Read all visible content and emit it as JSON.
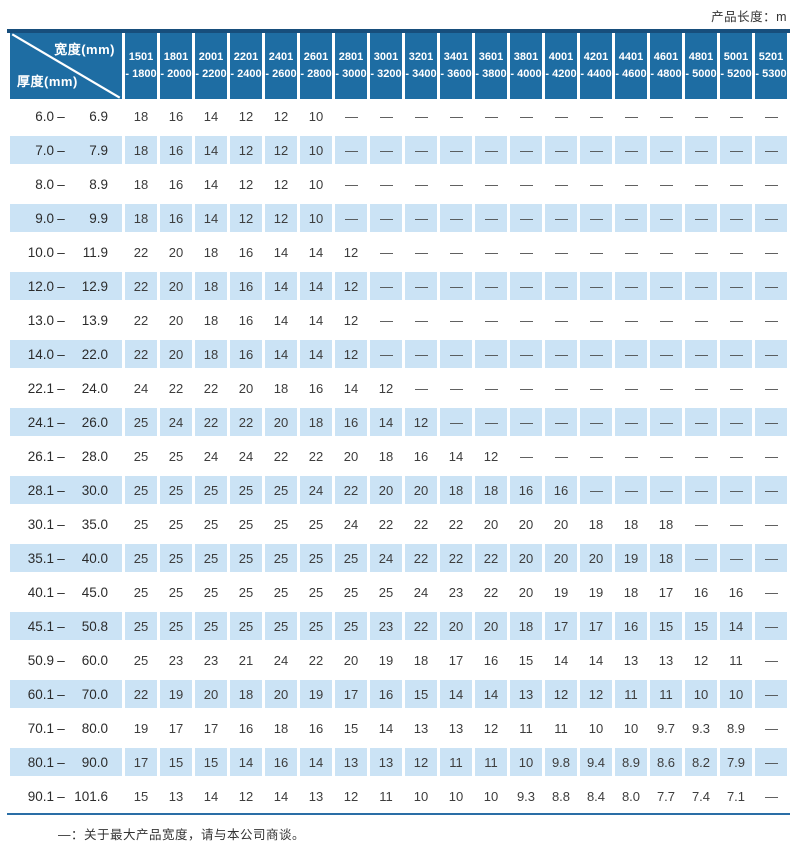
{
  "page": {
    "product_length_label": "产品长度：m"
  },
  "colors": {
    "header_blue": "#1e6da3",
    "header_top_border_navy": "#174e7c",
    "alt_row_blue": "#cbe3f5",
    "footer_rule_blue": "#2a6ea6",
    "cell_text": "#3d3d3d"
  },
  "table": {
    "corner": {
      "top_label": "宽度(mm)",
      "bottom_label": "厚度(mm)"
    },
    "col_headers": [
      {
        "line1": "1501",
        "line2": "- 1800"
      },
      {
        "line1": "1801",
        "line2": "- 2000"
      },
      {
        "line1": "2001",
        "line2": "- 2200"
      },
      {
        "line1": "2201",
        "line2": "- 2400"
      },
      {
        "line1": "2401",
        "line2": "- 2600"
      },
      {
        "line1": "2601",
        "line2": "- 2800"
      },
      {
        "line1": "2801",
        "line2": "- 3000"
      },
      {
        "line1": "3001",
        "line2": "- 3200"
      },
      {
        "line1": "3201",
        "line2": "- 3400"
      },
      {
        "line1": "3401",
        "line2": "- 3600"
      },
      {
        "line1": "3601",
        "line2": "- 3800"
      },
      {
        "line1": "3801",
        "line2": "- 4000"
      },
      {
        "line1": "4001",
        "line2": "- 4200"
      },
      {
        "line1": "4201",
        "line2": "- 4400"
      },
      {
        "line1": "4401",
        "line2": "- 4600"
      },
      {
        "line1": "4601",
        "line2": "- 4800"
      },
      {
        "line1": "4801",
        "line2": "- 5000"
      },
      {
        "line1": "5001",
        "line2": "- 5200"
      },
      {
        "line1": "5201",
        "line2": "- 5300"
      }
    ],
    "rows": [
      {
        "from": "6.0",
        "to": "6.9",
        "values": [
          "18",
          "16",
          "14",
          "12",
          "12",
          "10",
          "—",
          "—",
          "—",
          "—",
          "—",
          "—",
          "—",
          "—",
          "—",
          "—",
          "—",
          "—",
          "—"
        ]
      },
      {
        "from": "7.0",
        "to": "7.9",
        "values": [
          "18",
          "16",
          "14",
          "12",
          "12",
          "10",
          "—",
          "—",
          "—",
          "—",
          "—",
          "—",
          "—",
          "—",
          "—",
          "—",
          "—",
          "—",
          "—"
        ]
      },
      {
        "from": "8.0",
        "to": "8.9",
        "values": [
          "18",
          "16",
          "14",
          "12",
          "12",
          "10",
          "—",
          "—",
          "—",
          "—",
          "—",
          "—",
          "—",
          "—",
          "—",
          "—",
          "—",
          "—",
          "—"
        ]
      },
      {
        "from": "9.0",
        "to": "9.9",
        "values": [
          "18",
          "16",
          "14",
          "12",
          "12",
          "10",
          "—",
          "—",
          "—",
          "—",
          "—",
          "—",
          "—",
          "—",
          "—",
          "—",
          "—",
          "—",
          "—"
        ]
      },
      {
        "from": "10.0",
        "to": "11.9",
        "values": [
          "22",
          "20",
          "18",
          "16",
          "14",
          "14",
          "12",
          "—",
          "—",
          "—",
          "—",
          "—",
          "—",
          "—",
          "—",
          "—",
          "—",
          "—",
          "—"
        ]
      },
      {
        "from": "12.0",
        "to": "12.9",
        "values": [
          "22",
          "20",
          "18",
          "16",
          "14",
          "14",
          "12",
          "—",
          "—",
          "—",
          "—",
          "—",
          "—",
          "—",
          "—",
          "—",
          "—",
          "—",
          "—"
        ]
      },
      {
        "from": "13.0",
        "to": "13.9",
        "values": [
          "22",
          "20",
          "18",
          "16",
          "14",
          "14",
          "12",
          "—",
          "—",
          "—",
          "—",
          "—",
          "—",
          "—",
          "—",
          "—",
          "—",
          "—",
          "—"
        ]
      },
      {
        "from": "14.0",
        "to": "22.0",
        "values": [
          "22",
          "20",
          "18",
          "16",
          "14",
          "14",
          "12",
          "—",
          "—",
          "—",
          "—",
          "—",
          "—",
          "—",
          "—",
          "—",
          "—",
          "—",
          "—"
        ]
      },
      {
        "from": "22.1",
        "to": "24.0",
        "values": [
          "24",
          "22",
          "22",
          "20",
          "18",
          "16",
          "14",
          "12",
          "—",
          "—",
          "—",
          "—",
          "—",
          "—",
          "—",
          "—",
          "—",
          "—",
          "—"
        ]
      },
      {
        "from": "24.1",
        "to": "26.0",
        "values": [
          "25",
          "24",
          "22",
          "22",
          "20",
          "18",
          "16",
          "14",
          "12",
          "—",
          "—",
          "—",
          "—",
          "—",
          "—",
          "—",
          "—",
          "—",
          "—"
        ]
      },
      {
        "from": "26.1",
        "to": "28.0",
        "values": [
          "25",
          "25",
          "24",
          "24",
          "22",
          "22",
          "20",
          "18",
          "16",
          "14",
          "12",
          "—",
          "—",
          "—",
          "—",
          "—",
          "—",
          "—",
          "—"
        ]
      },
      {
        "from": "28.1",
        "to": "30.0",
        "values": [
          "25",
          "25",
          "25",
          "25",
          "25",
          "24",
          "22",
          "20",
          "20",
          "18",
          "18",
          "16",
          "16",
          "—",
          "—",
          "—",
          "—",
          "—",
          "—"
        ]
      },
      {
        "from": "30.1",
        "to": "35.0",
        "values": [
          "25",
          "25",
          "25",
          "25",
          "25",
          "25",
          "24",
          "22",
          "22",
          "22",
          "20",
          "20",
          "20",
          "18",
          "18",
          "18",
          "—",
          "—",
          "—"
        ]
      },
      {
        "from": "35.1",
        "to": "40.0",
        "values": [
          "25",
          "25",
          "25",
          "25",
          "25",
          "25",
          "25",
          "24",
          "22",
          "22",
          "22",
          "20",
          "20",
          "20",
          "19",
          "18",
          "—",
          "—",
          "—"
        ]
      },
      {
        "from": "40.1",
        "to": "45.0",
        "values": [
          "25",
          "25",
          "25",
          "25",
          "25",
          "25",
          "25",
          "25",
          "24",
          "23",
          "22",
          "20",
          "19",
          "19",
          "18",
          "17",
          "16",
          "16",
          "—"
        ]
      },
      {
        "from": "45.1",
        "to": "50.8",
        "values": [
          "25",
          "25",
          "25",
          "25",
          "25",
          "25",
          "25",
          "23",
          "22",
          "20",
          "20",
          "18",
          "17",
          "17",
          "16",
          "15",
          "15",
          "14",
          "—"
        ]
      },
      {
        "from": "50.9",
        "to": "60.0",
        "values": [
          "25",
          "23",
          "23",
          "21",
          "24",
          "22",
          "20",
          "19",
          "18",
          "17",
          "16",
          "15",
          "14",
          "14",
          "13",
          "13",
          "12",
          "11",
          "—"
        ]
      },
      {
        "from": "60.1",
        "to": "70.0",
        "values": [
          "22",
          "19",
          "20",
          "18",
          "20",
          "19",
          "17",
          "16",
          "15",
          "14",
          "14",
          "13",
          "12",
          "12",
          "11",
          "11",
          "10",
          "10",
          "—"
        ]
      },
      {
        "from": "70.1",
        "to": "80.0",
        "values": [
          "19",
          "17",
          "17",
          "16",
          "18",
          "16",
          "15",
          "14",
          "13",
          "13",
          "12",
          "11",
          "11",
          "10",
          "10",
          "9.7",
          "9.3",
          "8.9",
          "—"
        ]
      },
      {
        "from": "80.1",
        "to": "90.0",
        "values": [
          "17",
          "15",
          "15",
          "14",
          "16",
          "14",
          "13",
          "13",
          "12",
          "11",
          "11",
          "10",
          "9.8",
          "9.4",
          "8.9",
          "8.6",
          "8.2",
          "7.9",
          "—"
        ]
      },
      {
        "from": "90.1",
        "to": "101.6",
        "values": [
          "15",
          "13",
          "14",
          "12",
          "14",
          "13",
          "12",
          "11",
          "10",
          "10",
          "10",
          "9.3",
          "8.8",
          "8.4",
          "8.0",
          "7.7",
          "7.4",
          "7.1",
          "—"
        ]
      }
    ]
  },
  "footer": {
    "note": "—：关于最大产品宽度，请与本公司商谈。"
  }
}
